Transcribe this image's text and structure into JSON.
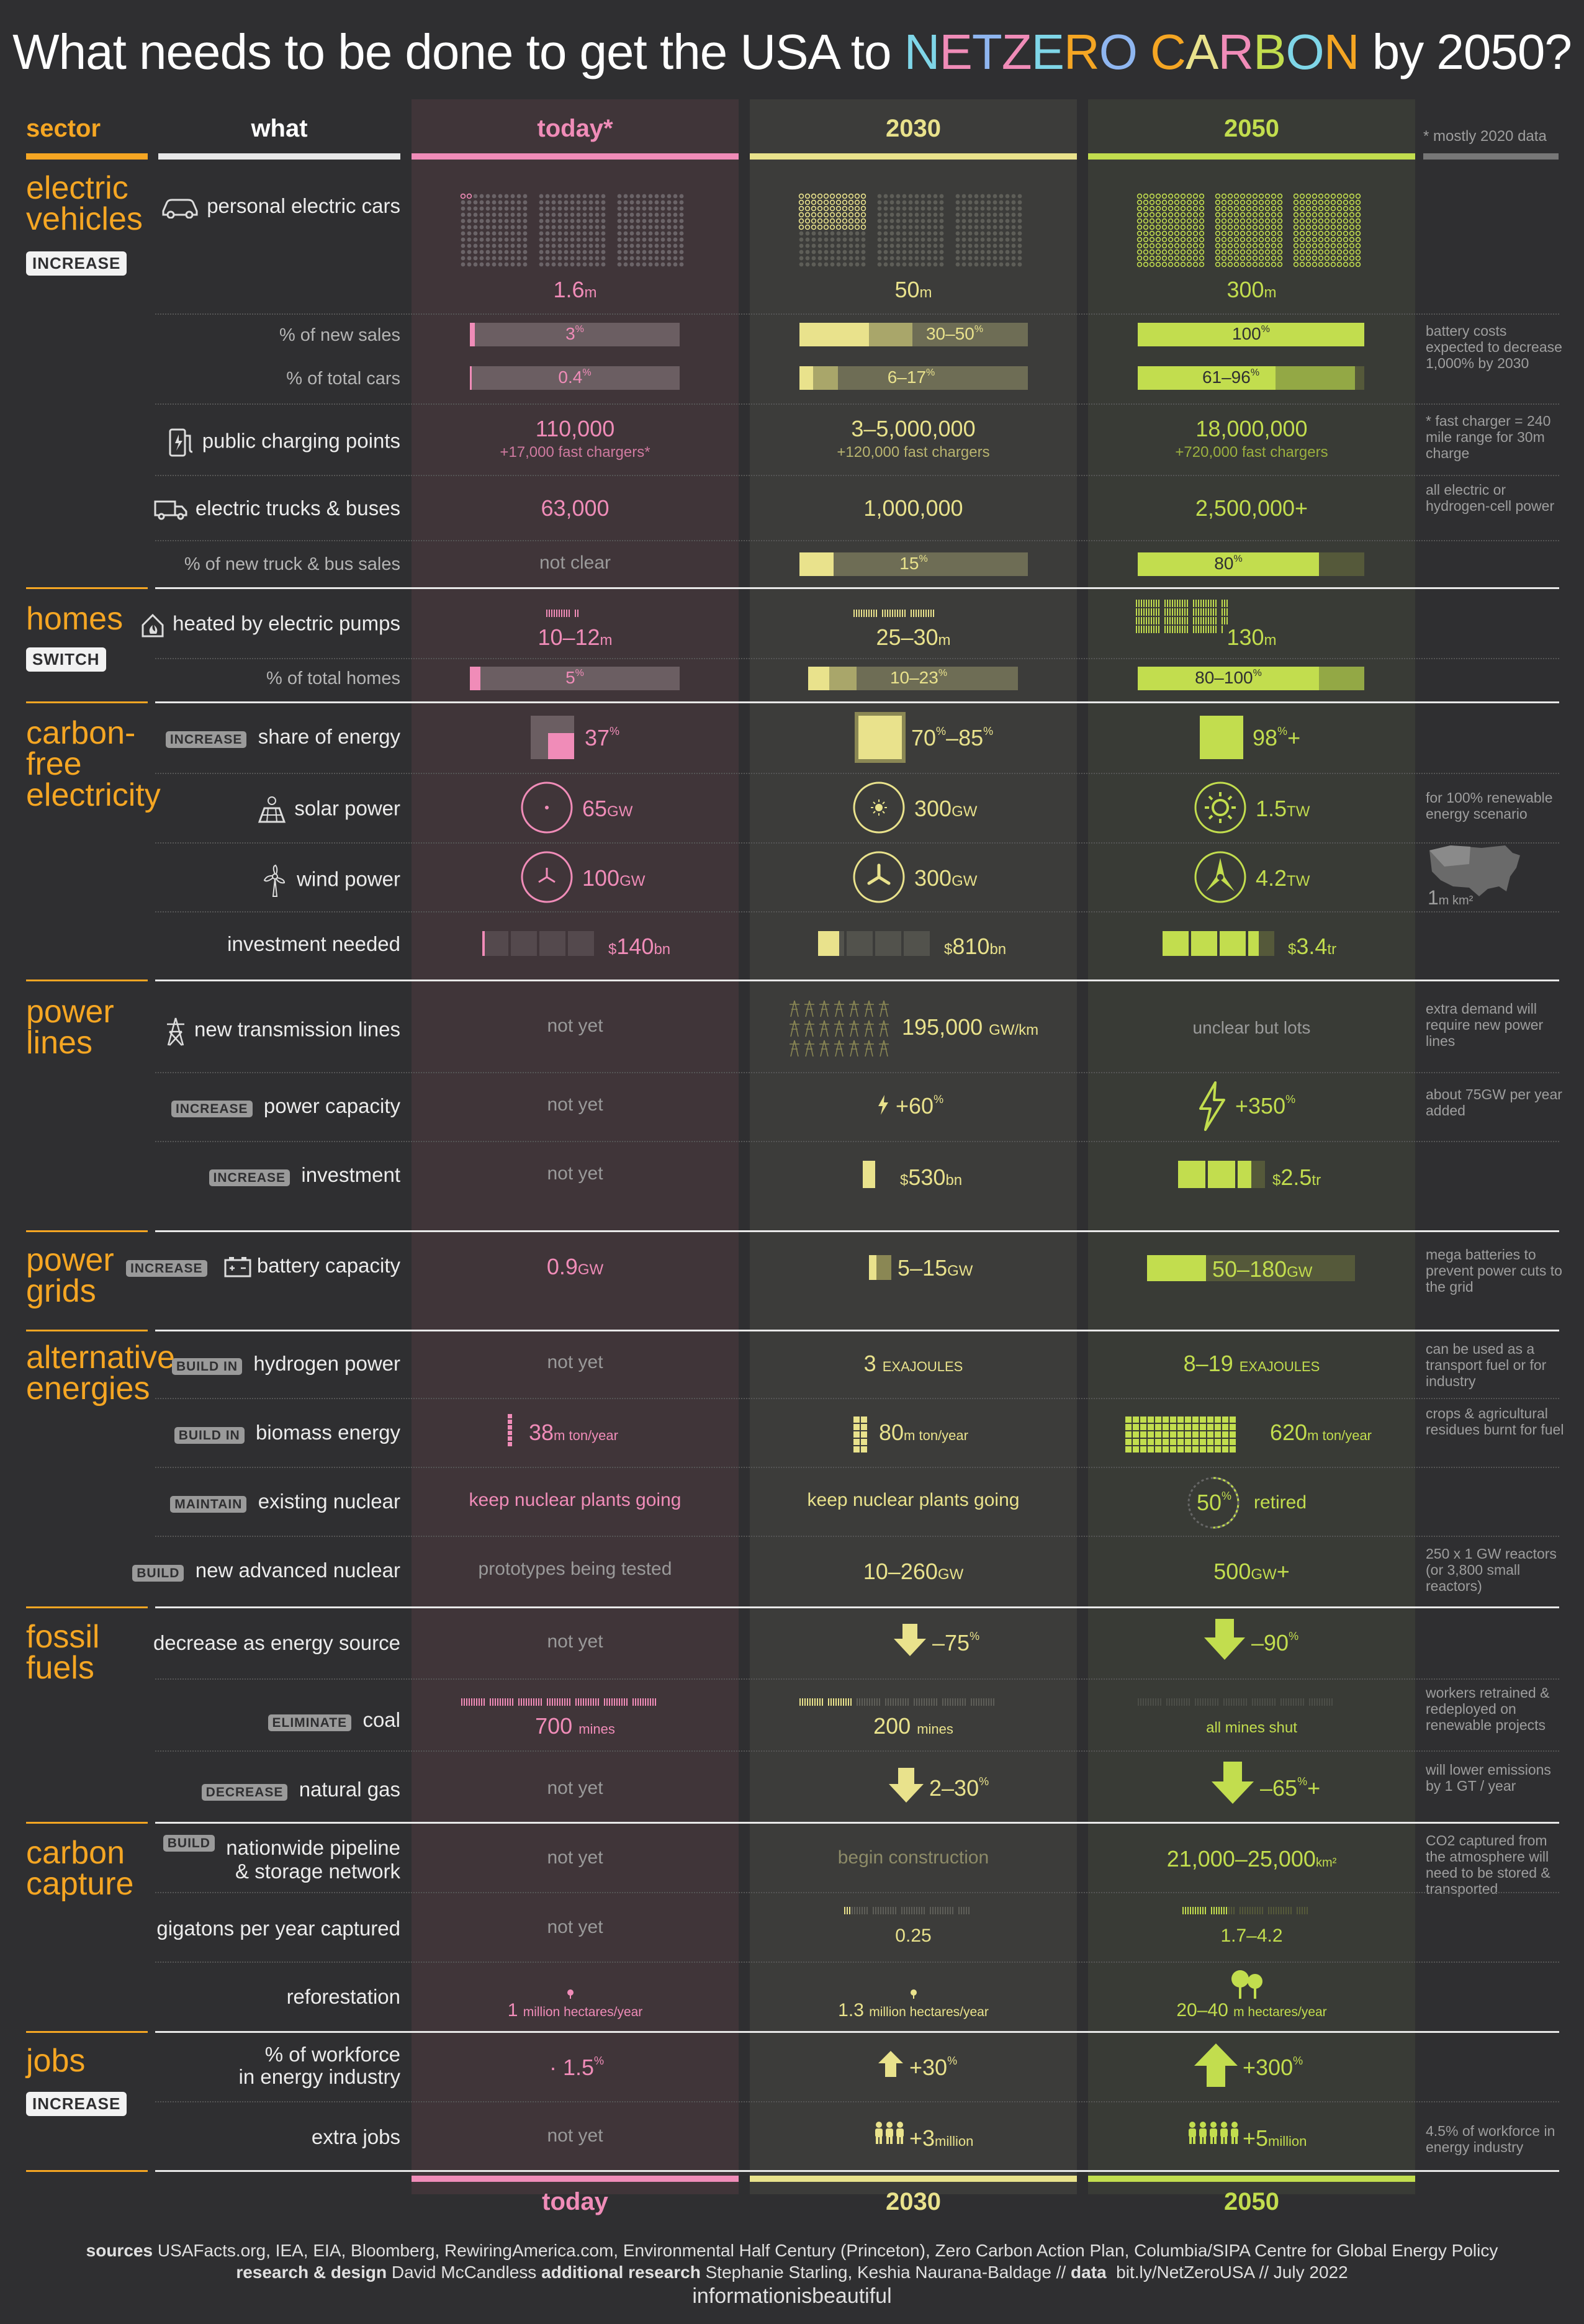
{
  "title_parts": [
    "What needs to be done to get the USA to ",
    "NETZERO CARBON",
    " by 2050?"
  ],
  "title_prefix": "What needs to be done to get the USA to ",
  "title_n": "N",
  "title_e": "E",
  "title_t": "T",
  "title_z": "Z",
  "title_e2": "E",
  "title_r": "R",
  "title_o": "O",
  "title_c": "C",
  "title_a": "A",
  "title_r2": "R",
  "title_b": "B",
  "title_o2": "O",
  "title_n2": "N",
  "title_suffix": " by 2050?",
  "headers": {
    "sector": "sector",
    "what": "what",
    "today": "today*",
    "y2030": "2030",
    "y2050": "2050",
    "note": "* mostly 2020 data"
  },
  "footer_headers": {
    "today": "today",
    "y2030": "2030",
    "y2050": "2050"
  },
  "colors": {
    "today": "#f08cb8",
    "y2030": "#e9e28c",
    "y2050": "#c2dd4e",
    "sector": "#f5a623"
  },
  "sectors": {
    "ev": {
      "name1": "electric",
      "name2": "vehicles",
      "badge": "INCREASE"
    },
    "homes": {
      "name1": "homes",
      "badge": "SWITCH"
    },
    "cfe": {
      "name1": "carbon-",
      "name2": "free",
      "name3": "electricity"
    },
    "power_lines": {
      "name1": "power",
      "name2": "lines"
    },
    "power_grids": {
      "name1": "power",
      "name2": "grids"
    },
    "alt": {
      "name1": "alternative",
      "name2": "energies"
    },
    "fossil": {
      "name1": "fossil",
      "name2": "fuels"
    },
    "cc": {
      "name1": "carbon",
      "name2": "capture"
    },
    "jobs": {
      "name1": "jobs",
      "badge": "INCREASE"
    }
  },
  "rows": {
    "cars": {
      "what": "personal electric cars",
      "today": "1.6",
      "today_u": "m",
      "y2030": "50",
      "y2030_u": "m",
      "y2050": "300",
      "y2050_u": "m"
    },
    "new_sales": {
      "what": "% of new sales",
      "today": "3",
      "y2030": "30–50",
      "y2050": "100",
      "pct": "%",
      "note": "battery costs expected to decrease 1,000% by 2030",
      "today_frac": 0.03,
      "y2030_frac": [
        0.3,
        0.5
      ],
      "y2050_frac": 1.0
    },
    "total_cars": {
      "what": "% of total cars",
      "today": "0.4",
      "y2030": "6–17",
      "y2050": "61–96",
      "pct": "%",
      "today_frac": 0.004,
      "y2030_frac": [
        0.06,
        0.17
      ],
      "y2050_frac": [
        0.61,
        0.96
      ]
    },
    "charging": {
      "what": "public charging points",
      "today": "110,000",
      "today_sub": "+17,000 fast chargers*",
      "y2030": "3–5,000,000",
      "y2030_sub": "+120,000 fast chargers",
      "y2050": "18,000,000",
      "y2050_sub": "+720,000 fast chargers",
      "note": "* fast charger = 240 mile range for 30m charge"
    },
    "trucks": {
      "what": "electric trucks & buses",
      "today": "63,000",
      "y2030": "1,000,000",
      "y2050": "2,500,000+",
      "note": "all electric or hydrogen-cell power"
    },
    "truck_sales": {
      "what": "% of new truck & bus sales",
      "today": "not clear",
      "y2030": "15",
      "y2050": "80",
      "pct": "%",
      "y2030_frac": 0.15,
      "y2050_frac": 0.8
    },
    "heat_pumps": {
      "what": "heated by electric pumps",
      "today": "10–12",
      "y2030": "25–30",
      "y2050": "130",
      "unit": "m"
    },
    "total_homes": {
      "what": "% of total homes",
      "today": "5",
      "y2030": "10–23",
      "y2050": "80–100",
      "pct": "%",
      "today_frac": 0.05,
      "y2030_frac": [
        0.1,
        0.23
      ],
      "y2050_frac": [
        0.8,
        1.0
      ]
    },
    "share_energy": {
      "badge": "INCREASE",
      "what": "share of energy",
      "today": "37",
      "y2030": "70",
      "y2030b": "–85",
      "y2050": "98",
      "pct": "%",
      "plus": "+",
      "today_frac": 0.37,
      "y2030_frac": 0.8,
      "y2050_frac": 0.98
    },
    "solar": {
      "what": "solar power",
      "today": "65",
      "y2030": "300",
      "y2050": "1.5",
      "gw": "GW",
      "tw": "TW",
      "note": "for 100% renewable energy scenario"
    },
    "wind": {
      "what": "wind power",
      "today": "100",
      "y2030": "300",
      "y2050": "4.2",
      "gw": "GW",
      "tw": "TW",
      "map_label": "1",
      "map_unit": "m km²"
    },
    "investment": {
      "what": "investment needed",
      "today": "140",
      "y2030": "810",
      "y2050": "3.4",
      "bn": "bn",
      "tr": "tr",
      "dollar": "$"
    },
    "transmission": {
      "what": "new transmission lines",
      "today": "not yet",
      "y2030": "195,000",
      "y2030_u": "GW/km",
      "y2050": "unclear but lots",
      "note": "extra demand will require new power lines"
    },
    "pl_capacity": {
      "badge": "INCREASE",
      "what": "power capacity",
      "today": "not yet",
      "y2030": "+60",
      "y2050": "+350",
      "pct": "%",
      "note": "about 75GW per year added"
    },
    "pl_invest": {
      "badge": "INCREASE",
      "what": "investment",
      "today": "not yet",
      "y2030": "530",
      "y2050": "2.5",
      "bn": "bn",
      "tr": "tr",
      "dollar": "$"
    },
    "battery": {
      "badge": "INCREASE",
      "what": "battery capacity",
      "today": "0.9",
      "y2030": "5–15",
      "y2050": "50–180",
      "gw": "GW",
      "note": "mega batteries to prevent power cuts to the grid"
    },
    "hydrogen": {
      "badge": "BUILD IN",
      "what": "hydrogen power",
      "today": "not yet",
      "y2030": "3",
      "y2050": "8–19",
      "unit": "EXAJOULES",
      "note": "can be used as a transport fuel or for industry"
    },
    "biomass": {
      "badge": "BUILD IN",
      "what": "biomass energy",
      "today": "38",
      "y2030": "80",
      "y2050": "620",
      "unit": "m ton/year",
      "note": "crops & agricultural residues burnt for fuel"
    },
    "nuclear": {
      "badge": "MAINTAIN",
      "what": "existing nuclear",
      "today": "keep nuclear plants going",
      "y2030": "keep nuclear plants going",
      "y2050": "50",
      "y2050_pct": "%",
      "y2050_suffix": "retired"
    },
    "adv_nuclear": {
      "badge": "BUILD",
      "what": "new advanced nuclear",
      "today": "prototypes being tested",
      "y2030": "10–260",
      "y2050": "500",
      "gw": "GW",
      "plus": "+",
      "note": "250 x 1 GW reactors (or 3,800 small reactors)"
    },
    "decrease": {
      "what": "decrease as energy source",
      "today": "not yet",
      "y2030": "–75",
      "y2050": "–90",
      "pct": "%"
    },
    "coal": {
      "badge": "ELIMINATE",
      "what": "coal",
      "today": "700",
      "y2030": "200",
      "unit": "mines",
      "y2050": "all mines shut",
      "note": "workers retrained & redeployed on renewable projects"
    },
    "gas": {
      "badge": "DECREASE",
      "what": "natural gas",
      "today": "not yet",
      "y2030": "2–30",
      "y2050": "–65",
      "pct": "%",
      "plus": "+",
      "note": "will lower emissions by 1 GT / year"
    },
    "pipeline": {
      "badge": "BUILD",
      "what1": "nationwide pipeline",
      "what2": "& storage network",
      "today": "not yet",
      "y2030": "begin construction",
      "y2050": "21,000–25,000",
      "unit": "km²",
      "note": "CO2 captured from the atmosphere will need to be stored & transported"
    },
    "gigatons": {
      "what": "gigatons per year captured",
      "today": "not yet",
      "y2030": "0.25",
      "y2050": "1.7–4.2"
    },
    "reforest": {
      "what": "reforestation",
      "today": "1",
      "y2030": "1.3",
      "y2030_u": "million hectares/year",
      "y2050": "20–40",
      "unit": "million hectares/year",
      "y2050_u": "m hectares/year"
    },
    "workforce": {
      "what1": "% of workforce",
      "what2": "in energy industry",
      "today": "1.5",
      "y2030": "+30",
      "y2050": "+300",
      "pct": "%"
    },
    "extra_jobs": {
      "what": "extra jobs",
      "today": "not yet",
      "y2030": "+3",
      "y2050": "+5",
      "unit": "million",
      "note": "4.5% of workforce in energy industry"
    }
  },
  "footer": {
    "sources_label": "sources",
    "sources": "USAFacts.org, IEA, EIA, Bloomberg, RewiringAmerica.com, Environmental Half Century (Princeton), Zero Carbon Action Plan, Columbia/SIPA Centre for Global Energy Policy",
    "research_label": "research & design",
    "research": "David McCandless",
    "additional_label": "additional research",
    "additional": "Stephanie Starling, Keshia Naurana-Baldage //",
    "data_label": "data",
    "data": "bit.ly/NetZeroUSA // July 2022",
    "brand": "informationisbeautiful"
  }
}
